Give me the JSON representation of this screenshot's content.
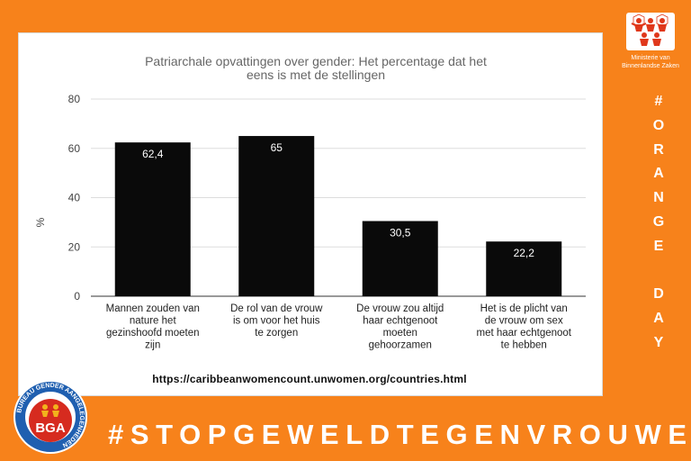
{
  "colors": {
    "background": "#f7821b",
    "bar": "#0a0a0a",
    "gridline": "#dddddd",
    "badge_red": "#d62b1f"
  },
  "chart_data": {
    "type": "bar",
    "title": "Patriarchale opvattingen over gender: Het percentage dat het eens is met de stellingen",
    "title_lines": [
      "Patriarchale opvattingen over gender: Het percentage dat het",
      "eens is met de stellingen"
    ],
    "ylabel": "%",
    "xlabel": "",
    "ylim": [
      0,
      80
    ],
    "yticks": [
      0,
      20,
      40,
      60,
      80
    ],
    "grid": true,
    "categories": [
      "Mannen zouden van nature het gezinshoofd moeten zijn",
      "De rol van de vrouw is om voor het huis te zorgen",
      "De vrouw zou altijd haar echtgenoot moeten gehoorzamen",
      "Het is de plicht van de vrouw om sex met haar echtgenoot te hebben"
    ],
    "category_lines": [
      [
        "Mannen zouden van",
        "nature het",
        "gezinshoofd moeten",
        "zijn"
      ],
      [
        "De rol van de vrouw",
        "is om voor het huis",
        "te zorgen"
      ],
      [
        "De vrouw zou altijd",
        "haar echtgenoot",
        "moeten",
        "gehoorzamen"
      ],
      [
        "Het is de plicht van",
        "de vrouw om sex",
        "met haar echtgenoot",
        "te hebben"
      ]
    ],
    "values": [
      62.4,
      65,
      30.5,
      22.2
    ],
    "data_labels": [
      "62,4",
      "65",
      "30,5",
      "22,2"
    ]
  },
  "source_url": "https://caribbeanwomencount.unwomen.org/countries.html",
  "logo": {
    "organization": "Ministerie van Binnenlandse Zaken",
    "icon": "people-hexagon-logo-icon"
  },
  "vertical_tag": [
    "#",
    "O",
    "R",
    "A",
    "N",
    "G",
    "E",
    "",
    "D",
    "A",
    "Y"
  ],
  "banner": "#STOPGEWELDTEGENVROUWEN",
  "badge": {
    "text": "BGA",
    "ring_text": "BUREAU GENDER AANGELEGENHEDEN",
    "icon": "bga-emblem-icon"
  }
}
